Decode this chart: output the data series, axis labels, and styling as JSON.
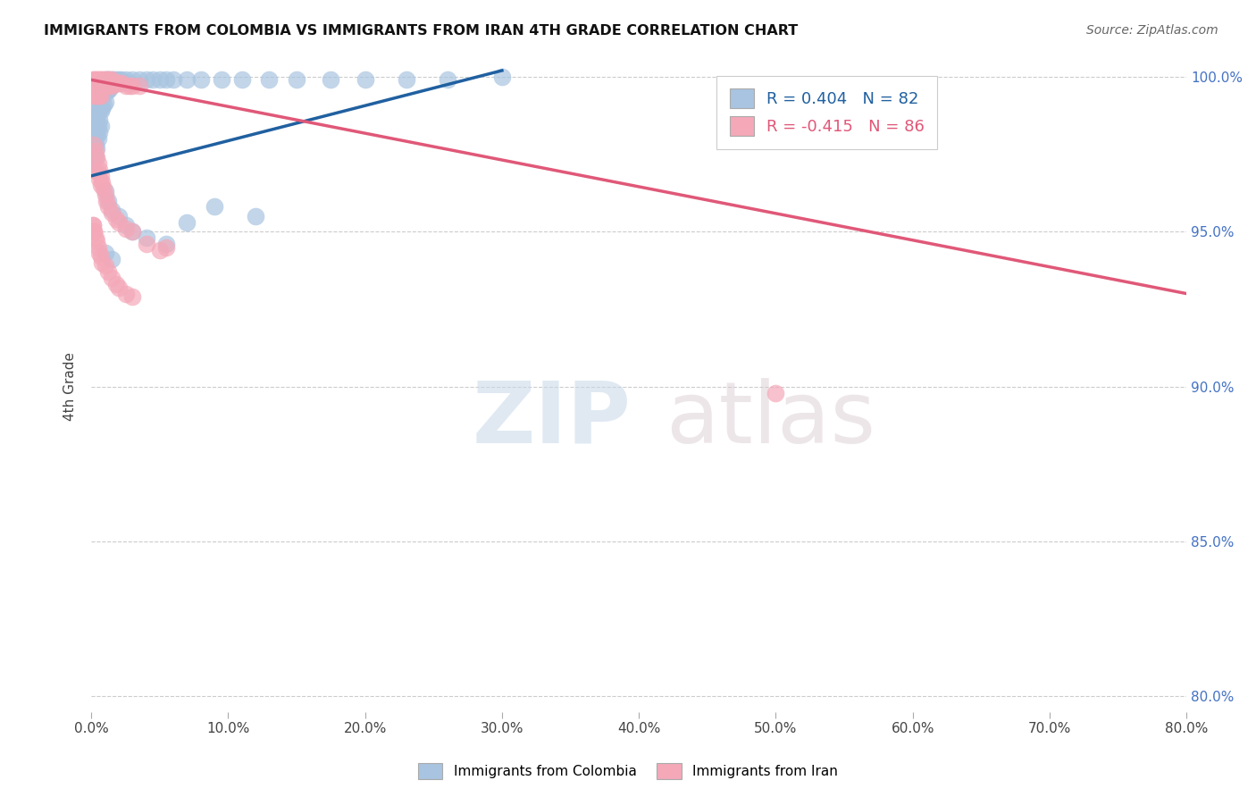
{
  "title": "IMMIGRANTS FROM COLOMBIA VS IMMIGRANTS FROM IRAN 4TH GRADE CORRELATION CHART",
  "source": "Source: ZipAtlas.com",
  "ylabel_label": "4th Grade",
  "xlim": [
    0.0,
    0.8
  ],
  "ylim": [
    0.795,
    1.005
  ],
  "colombia_color": "#a8c4e0",
  "iran_color": "#f4a8b8",
  "colombia_line_color": "#2060a0",
  "iran_line_color": "#e05878",
  "colombia_R": 0.404,
  "colombia_N": 82,
  "iran_R": -0.415,
  "iran_N": 86,
  "legend_label_colombia": "Immigrants from Colombia",
  "legend_label_iran": "Immigrants from Iran",
  "colombia_scatter": [
    [
      0.001,
      0.981
    ],
    [
      0.001,
      0.977
    ],
    [
      0.001,
      0.973
    ],
    [
      0.002,
      0.984
    ],
    [
      0.002,
      0.979
    ],
    [
      0.002,
      0.975
    ],
    [
      0.002,
      0.97
    ],
    [
      0.003,
      0.987
    ],
    [
      0.003,
      0.983
    ],
    [
      0.003,
      0.978
    ],
    [
      0.003,
      0.974
    ],
    [
      0.004,
      0.99
    ],
    [
      0.004,
      0.986
    ],
    [
      0.004,
      0.981
    ],
    [
      0.004,
      0.977
    ],
    [
      0.005,
      0.993
    ],
    [
      0.005,
      0.989
    ],
    [
      0.005,
      0.984
    ],
    [
      0.005,
      0.98
    ],
    [
      0.006,
      0.995
    ],
    [
      0.006,
      0.991
    ],
    [
      0.006,
      0.986
    ],
    [
      0.006,
      0.982
    ],
    [
      0.007,
      0.997
    ],
    [
      0.007,
      0.993
    ],
    [
      0.007,
      0.989
    ],
    [
      0.007,
      0.984
    ],
    [
      0.008,
      0.998
    ],
    [
      0.008,
      0.994
    ],
    [
      0.008,
      0.99
    ],
    [
      0.009,
      0.998
    ],
    [
      0.009,
      0.995
    ],
    [
      0.009,
      0.991
    ],
    [
      0.01,
      0.999
    ],
    [
      0.01,
      0.996
    ],
    [
      0.01,
      0.992
    ],
    [
      0.011,
      0.998
    ],
    [
      0.011,
      0.995
    ],
    [
      0.012,
      0.999
    ],
    [
      0.012,
      0.996
    ],
    [
      0.013,
      0.999
    ],
    [
      0.013,
      0.996
    ],
    [
      0.014,
      0.998
    ],
    [
      0.015,
      0.999
    ],
    [
      0.015,
      0.997
    ],
    [
      0.016,
      0.999
    ],
    [
      0.017,
      0.998
    ],
    [
      0.018,
      0.999
    ],
    [
      0.019,
      0.998
    ],
    [
      0.02,
      0.999
    ],
    [
      0.022,
      0.999
    ],
    [
      0.025,
      0.999
    ],
    [
      0.028,
      0.998
    ],
    [
      0.03,
      0.999
    ],
    [
      0.035,
      0.999
    ],
    [
      0.04,
      0.999
    ],
    [
      0.045,
      0.999
    ],
    [
      0.05,
      0.999
    ],
    [
      0.055,
      0.999
    ],
    [
      0.06,
      0.999
    ],
    [
      0.07,
      0.999
    ],
    [
      0.08,
      0.999
    ],
    [
      0.095,
      0.999
    ],
    [
      0.11,
      0.999
    ],
    [
      0.13,
      0.999
    ],
    [
      0.15,
      0.999
    ],
    [
      0.175,
      0.999
    ],
    [
      0.2,
      0.999
    ],
    [
      0.23,
      0.999
    ],
    [
      0.26,
      0.999
    ],
    [
      0.3,
      1.0
    ],
    [
      0.01,
      0.963
    ],
    [
      0.012,
      0.96
    ],
    [
      0.015,
      0.957
    ],
    [
      0.02,
      0.955
    ],
    [
      0.025,
      0.952
    ],
    [
      0.03,
      0.95
    ],
    [
      0.04,
      0.948
    ],
    [
      0.055,
      0.946
    ],
    [
      0.07,
      0.953
    ],
    [
      0.09,
      0.958
    ],
    [
      0.12,
      0.955
    ],
    [
      0.01,
      0.943
    ],
    [
      0.015,
      0.941
    ]
  ],
  "iran_scatter": [
    [
      0.001,
      0.999
    ],
    [
      0.001,
      0.996
    ],
    [
      0.002,
      0.999
    ],
    [
      0.002,
      0.997
    ],
    [
      0.002,
      0.994
    ],
    [
      0.003,
      0.999
    ],
    [
      0.003,
      0.997
    ],
    [
      0.003,
      0.994
    ],
    [
      0.004,
      0.999
    ],
    [
      0.004,
      0.997
    ],
    [
      0.004,
      0.994
    ],
    [
      0.005,
      0.999
    ],
    [
      0.005,
      0.997
    ],
    [
      0.005,
      0.994
    ],
    [
      0.006,
      0.999
    ],
    [
      0.006,
      0.997
    ],
    [
      0.006,
      0.994
    ],
    [
      0.007,
      0.999
    ],
    [
      0.007,
      0.997
    ],
    [
      0.007,
      0.994
    ],
    [
      0.008,
      0.999
    ],
    [
      0.008,
      0.997
    ],
    [
      0.009,
      0.999
    ],
    [
      0.009,
      0.997
    ],
    [
      0.01,
      0.999
    ],
    [
      0.01,
      0.997
    ],
    [
      0.011,
      0.999
    ],
    [
      0.011,
      0.997
    ],
    [
      0.012,
      0.999
    ],
    [
      0.012,
      0.997
    ],
    [
      0.013,
      0.999
    ],
    [
      0.013,
      0.997
    ],
    [
      0.014,
      0.998
    ],
    [
      0.015,
      0.999
    ],
    [
      0.015,
      0.997
    ],
    [
      0.016,
      0.998
    ],
    [
      0.017,
      0.998
    ],
    [
      0.018,
      0.998
    ],
    [
      0.019,
      0.998
    ],
    [
      0.02,
      0.998
    ],
    [
      0.022,
      0.998
    ],
    [
      0.025,
      0.997
    ],
    [
      0.028,
      0.997
    ],
    [
      0.03,
      0.997
    ],
    [
      0.035,
      0.997
    ],
    [
      0.002,
      0.978
    ],
    [
      0.003,
      0.976
    ],
    [
      0.004,
      0.974
    ],
    [
      0.005,
      0.972
    ],
    [
      0.005,
      0.969
    ],
    [
      0.006,
      0.97
    ],
    [
      0.006,
      0.967
    ],
    [
      0.007,
      0.968
    ],
    [
      0.007,
      0.965
    ],
    [
      0.008,
      0.966
    ],
    [
      0.009,
      0.964
    ],
    [
      0.01,
      0.962
    ],
    [
      0.011,
      0.96
    ],
    [
      0.012,
      0.958
    ],
    [
      0.015,
      0.956
    ],
    [
      0.018,
      0.954
    ],
    [
      0.02,
      0.953
    ],
    [
      0.025,
      0.951
    ],
    [
      0.03,
      0.95
    ],
    [
      0.001,
      0.952
    ],
    [
      0.002,
      0.95
    ],
    [
      0.003,
      0.948
    ],
    [
      0.004,
      0.947
    ],
    [
      0.005,
      0.945
    ],
    [
      0.006,
      0.943
    ],
    [
      0.007,
      0.942
    ],
    [
      0.008,
      0.94
    ],
    [
      0.01,
      0.939
    ],
    [
      0.012,
      0.937
    ],
    [
      0.015,
      0.935
    ],
    [
      0.018,
      0.933
    ],
    [
      0.02,
      0.932
    ],
    [
      0.025,
      0.93
    ],
    [
      0.03,
      0.929
    ],
    [
      0.001,
      0.952
    ],
    [
      0.002,
      0.95
    ],
    [
      0.5,
      0.898
    ],
    [
      0.04,
      0.946
    ],
    [
      0.05,
      0.944
    ],
    [
      0.055,
      0.945
    ]
  ],
  "colombia_trendline_x": [
    0.0,
    0.3
  ],
  "colombia_trendline_y": [
    0.968,
    1.002
  ],
  "iran_trendline_x": [
    0.0,
    0.8
  ],
  "iran_trendline_y": [
    0.999,
    0.93
  ],
  "x_tick_vals": [
    0.0,
    0.1,
    0.2,
    0.3,
    0.4,
    0.5,
    0.6,
    0.7,
    0.8
  ],
  "x_tick_labels": [
    "0.0%",
    "10.0%",
    "20.0%",
    "30.0%",
    "40.0%",
    "50.0%",
    "60.0%",
    "70.0%",
    "80.0%"
  ],
  "y_tick_vals": [
    0.8,
    0.85,
    0.9,
    0.95,
    1.0
  ],
  "y_tick_labels": [
    "80.0%",
    "85.0%",
    "90.0%",
    "95.0%",
    "100.0%"
  ]
}
